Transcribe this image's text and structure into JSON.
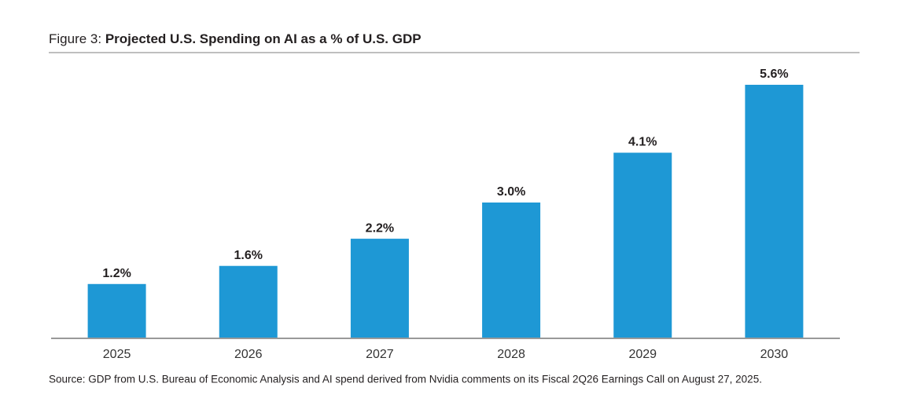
{
  "chart_data": {
    "type": "bar",
    "figure_label": "Figure 3:",
    "title": "Projected U.S. Spending on AI as a % of U.S. GDP",
    "categories": [
      "2025",
      "2026",
      "2027",
      "2028",
      "2029",
      "2030"
    ],
    "values": [
      1.2,
      1.6,
      2.2,
      3.0,
      4.1,
      5.6
    ],
    "value_labels": [
      "1.2%",
      "1.6%",
      "2.2%",
      "3.0%",
      "4.1%",
      "5.6%"
    ],
    "color": "#1e98d5",
    "source": "Source: GDP from U.S. Bureau of Economic Analysis and AI spend derived from Nvidia comments on its Fiscal 2Q26 Earnings Call on August 27, 2025."
  }
}
